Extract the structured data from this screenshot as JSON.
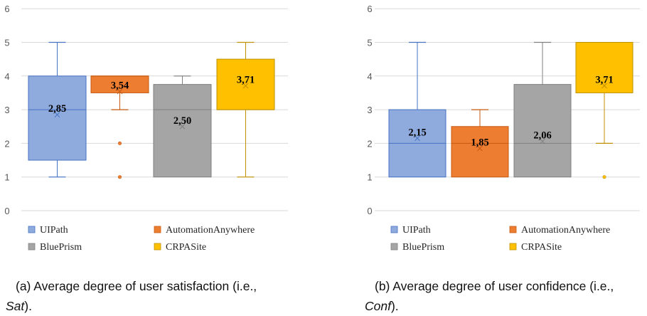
{
  "colors": {
    "UIPath": "#8faadc",
    "AutomationAnywhere": "#ed7d31",
    "BluePrism": "#a5a5a5",
    "CRPASite": "#ffc000",
    "UIPath_line": "#4472c4",
    "AutomationAnywhere_line": "#c55a11",
    "BluePrism_line": "#7f7f7f",
    "CRPASite_line": "#bf9000",
    "grid": "#d9d9d9"
  },
  "chart_data": [
    {
      "type": "box",
      "ylim": [
        0,
        6
      ],
      "yticks": [
        "0",
        "1",
        "2",
        "3",
        "4",
        "5",
        "6"
      ],
      "legend": [
        "UIPath",
        "AutomationAnywhere",
        "BluePrism",
        "CRPASite"
      ],
      "series": [
        {
          "name": "UIPath",
          "min": 1,
          "q1": 1.5,
          "median": 3,
          "q3": 4,
          "max": 5,
          "mean": 2.85,
          "mean_label": "2,85",
          "outliers": []
        },
        {
          "name": "AutomationAnywhere",
          "min": 3,
          "q1": 3.5,
          "median": 4,
          "q3": 4,
          "max": 4,
          "mean": 3.54,
          "mean_label": "3,54",
          "outliers": [
            2,
            1
          ]
        },
        {
          "name": "BluePrism",
          "min": 1,
          "q1": 1,
          "median": 3,
          "q3": 3.75,
          "max": 4,
          "mean": 2.5,
          "mean_label": "2,50",
          "outliers": []
        },
        {
          "name": "CRPASite",
          "min": 1,
          "q1": 3,
          "median": 3,
          "q3": 4.5,
          "max": 5,
          "mean": 3.71,
          "mean_label": "3,71",
          "outliers": []
        }
      ]
    },
    {
      "type": "box",
      "ylim": [
        0,
        6
      ],
      "yticks": [
        "0",
        "1",
        "2",
        "3",
        "4",
        "5",
        "6"
      ],
      "legend": [
        "UIPath",
        "AutomationAnywhere",
        "BluePrism",
        "CRPASite"
      ],
      "series": [
        {
          "name": "UIPath",
          "min": 1,
          "q1": 1,
          "median": 2,
          "q3": 3,
          "max": 5,
          "mean": 2.15,
          "mean_label": "2,15",
          "outliers": []
        },
        {
          "name": "AutomationAnywhere",
          "min": 1,
          "q1": 1,
          "median": 2,
          "q3": 2.5,
          "max": 3,
          "mean": 1.85,
          "mean_label": "1,85",
          "outliers": []
        },
        {
          "name": "BluePrism",
          "min": 1,
          "q1": 1,
          "median": 2,
          "q3": 3.75,
          "max": 5,
          "mean": 2.06,
          "mean_label": "2,06",
          "outliers": []
        },
        {
          "name": "CRPASite",
          "min": 2,
          "q1": 3.5,
          "median": 5,
          "q3": 5,
          "max": 5,
          "mean": 3.71,
          "mean_label": "3,71",
          "outliers": [
            1
          ]
        }
      ]
    }
  ],
  "captions": [
    {
      "line1": "(a) Average degree of user satisfaction (i.e.,",
      "line2_em": "Sat",
      "line2_tail": ")."
    },
    {
      "line1": "(b) Average degree of user confidence (i.e.,",
      "line2_em": "Conf",
      "line2_tail": ")."
    }
  ]
}
